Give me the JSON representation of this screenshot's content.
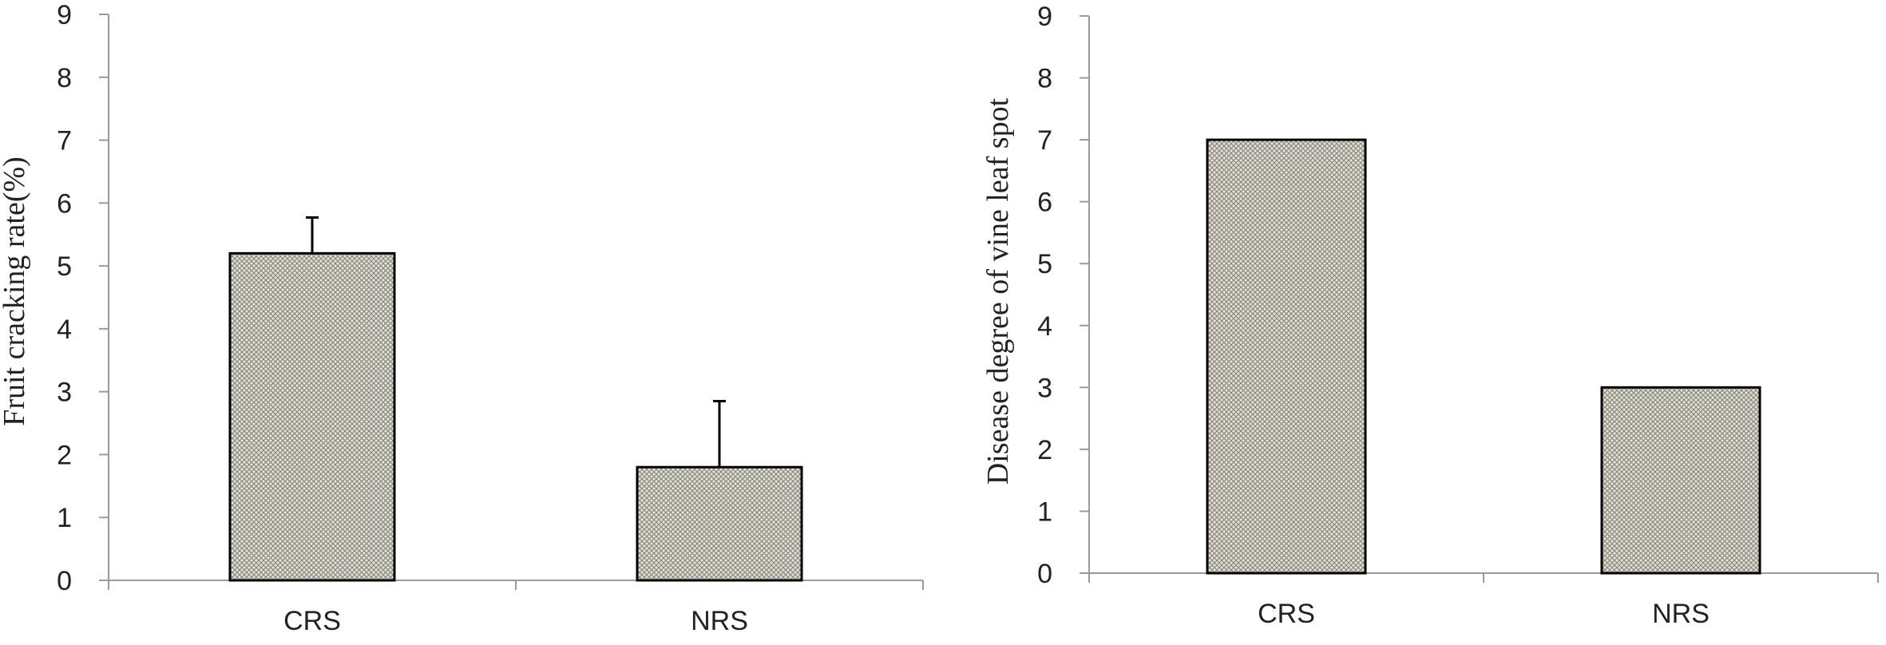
{
  "chart_data": [
    {
      "type": "bar",
      "categories": [
        "CRS",
        "NRS"
      ],
      "values": [
        5.2,
        1.8
      ],
      "error_up": [
        0.57,
        1.05
      ],
      "title": "",
      "xlabel": "",
      "ylabel": "Fruit cracking rate(%)",
      "ylim": [
        0,
        9
      ],
      "yticks": [
        "0",
        "1",
        "2",
        "3",
        "4",
        "5",
        "6",
        "7",
        "8",
        "9"
      ],
      "grid": false,
      "bar_pattern": "crosshatch",
      "bar_fill": "#c9c6bb",
      "bar_stroke": "#000000"
    },
    {
      "type": "bar",
      "categories": [
        "CRS",
        "NRS"
      ],
      "values": [
        7.0,
        3.0
      ],
      "title": "",
      "xlabel": "",
      "ylabel": "Disease degree of vine leaf spot",
      "ylim": [
        0,
        9
      ],
      "yticks": [
        "0",
        "1",
        "2",
        "3",
        "4",
        "5",
        "6",
        "7",
        "8",
        "9"
      ],
      "grid": false,
      "bar_pattern": "crosshatch",
      "bar_fill": "#c9c6bb",
      "bar_stroke": "#000000"
    }
  ]
}
